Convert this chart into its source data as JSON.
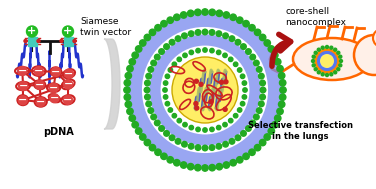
{
  "bg_color": "#ffffff",
  "text_siamese": "Siamese\ntwin vector",
  "text_pdna": "pDNA",
  "text_nanocomplex": "core-shell\nnanocomplex",
  "text_selective": "Selective transfection\nin the lungs",
  "green_head": "#22bb22",
  "teal_sq": "#44ccbb",
  "red_link": "#cc2222",
  "blue_tail": "#2233cc",
  "pdna_red": "#cc2222",
  "pdna_sphere": "#dd4444",
  "gray_arrow": "#cccccc",
  "nc_green": "#22aa22",
  "nc_blue": "#7788ee",
  "nc_yellow": "#ffee66",
  "nc_red": "#cc2222",
  "nc_darkblue": "#334488",
  "arrow_dark_red": "#aa1111",
  "mouse_orange": "#ff6600",
  "mouse_fill": "#fff0e8"
}
